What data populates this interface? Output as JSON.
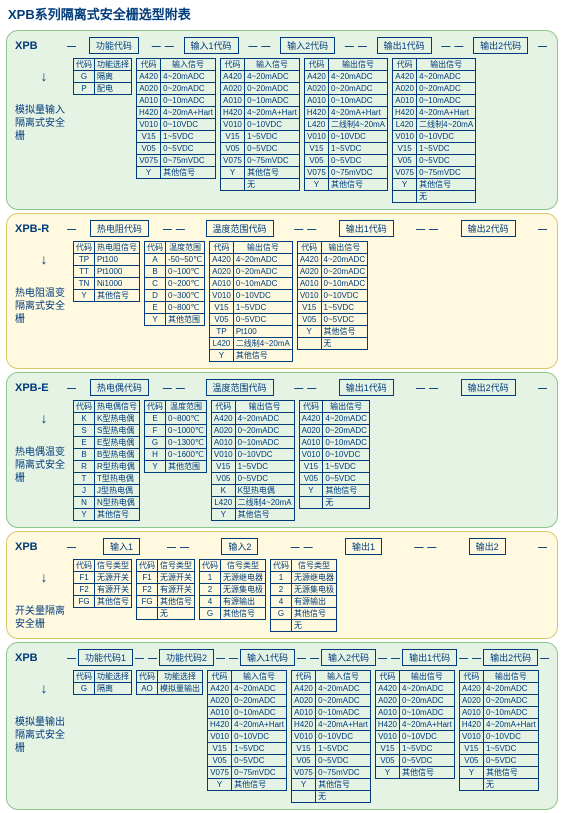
{
  "title": "XPB系列隔离式安全栅选型附表",
  "colors": {
    "text": "#003b7a",
    "green_bg": "#e5f3e5",
    "green_border": "#8bc78b",
    "yellow_bg": "#fef9df",
    "yellow_border": "#d8c96b"
  },
  "sections": [
    {
      "color": "green",
      "prefix": "XPB",
      "left_label": "模拟量输入隔离式安全栅",
      "headers": [
        "功能代码",
        "输入1代码",
        "输入2代码",
        "输出1代码",
        "输出2代码"
      ],
      "header_spacers": [
        14,
        10,
        10,
        10,
        10
      ],
      "tables": [
        {
          "cols": [
            "代码",
            "功能选择"
          ],
          "rows": [
            [
              "G",
              "隔离"
            ],
            [
              "P",
              "配电"
            ]
          ]
        },
        {
          "cols": [
            "代码",
            "输入信号"
          ],
          "rows": [
            [
              "A420",
              "4~20mADC"
            ],
            [
              "A020",
              "0~20mADC"
            ],
            [
              "A010",
              "0~10mADC"
            ],
            [
              "H420",
              "4~20mA+Hart"
            ],
            [
              "V010",
              "0~10VDC"
            ],
            [
              "V15",
              "1~5VDC"
            ],
            [
              "V05",
              "0~5VDC"
            ],
            [
              "V075",
              "0~75mVDC"
            ],
            [
              "Y",
              "其他信号"
            ]
          ]
        },
        {
          "cols": [
            "代码",
            "输入信号"
          ],
          "rows": [
            [
              "A420",
              "4~20mADC"
            ],
            [
              "A020",
              "0~20mADC"
            ],
            [
              "A010",
              "0~10mADC"
            ],
            [
              "H420",
              "4~20mA+Hart"
            ],
            [
              "V010",
              "0~10VDC"
            ],
            [
              "V15",
              "1~5VDC"
            ],
            [
              "V05",
              "0~5VDC"
            ],
            [
              "V075",
              "0~75mVDC"
            ],
            [
              "Y",
              "其他信号"
            ],
            [
              "",
              "无"
            ]
          ]
        },
        {
          "cols": [
            "代码",
            "输出信号"
          ],
          "rows": [
            [
              "A420",
              "4~20mADC"
            ],
            [
              "A020",
              "0~20mADC"
            ],
            [
              "A010",
              "0~10mADC"
            ],
            [
              "H420",
              "4~20mA+Hart"
            ],
            [
              "L420",
              "二线制4~20mA"
            ],
            [
              "V010",
              "0~10VDC"
            ],
            [
              "V15",
              "1~5VDC"
            ],
            [
              "V05",
              "0~5VDC"
            ],
            [
              "V075",
              "0~75mVDC"
            ],
            [
              "Y",
              "其他信号"
            ]
          ]
        },
        {
          "cols": [
            "代码",
            "输出信号"
          ],
          "rows": [
            [
              "A420",
              "4~20mADC"
            ],
            [
              "A020",
              "0~20mADC"
            ],
            [
              "A010",
              "0~10mADC"
            ],
            [
              "H420",
              "4~20mA+Hart"
            ],
            [
              "L420",
              "二线制4~20mA"
            ],
            [
              "V010",
              "0~10VDC"
            ],
            [
              "V15",
              "1~5VDC"
            ],
            [
              "V05",
              "0~5VDC"
            ],
            [
              "V075",
              "0~75mVDC"
            ],
            [
              "Y",
              "其他信号"
            ],
            [
              "",
              "无"
            ]
          ]
        }
      ]
    },
    {
      "color": "yellow",
      "prefix": "XPB-R",
      "left_label": "热电阻温变隔离式安全栅",
      "headers": [
        "热电阻代码",
        "温度范围代码",
        "输出1代码",
        "输出2代码"
      ],
      "header_spacers": [
        14,
        22,
        24,
        24
      ],
      "tables": [
        {
          "cols": [
            "代码",
            "热电阻信号"
          ],
          "rows": [
            [
              "TP",
              "Pt100"
            ],
            [
              "TT",
              "Pt1000"
            ],
            [
              "TN",
              "Ni1000"
            ],
            [
              "Y",
              "其他信号"
            ]
          ]
        },
        {
          "cols": [
            "代码",
            "温度范围"
          ],
          "rows": [
            [
              "A",
              "-50~50℃"
            ],
            [
              "B",
              "0~100℃"
            ],
            [
              "C",
              "0~200℃"
            ],
            [
              "D",
              "0~300℃"
            ],
            [
              "E",
              "0~800℃"
            ],
            [
              "Y",
              "其他范围"
            ]
          ]
        },
        {
          "cols": [
            "代码",
            "输出信号"
          ],
          "rows": [
            [
              "A420",
              "4~20mADC"
            ],
            [
              "A020",
              "0~20mADC"
            ],
            [
              "A010",
              "0~10mADC"
            ],
            [
              "V010",
              "0~10VDC"
            ],
            [
              "V15",
              "1~5VDC"
            ],
            [
              "V05",
              "0~5VDC"
            ],
            [
              "TP",
              "Pt100"
            ],
            [
              "L420",
              "二线制4~20mA"
            ],
            [
              "Y",
              "其他信号"
            ]
          ]
        },
        {
          "cols": [
            "代码",
            "输出信号"
          ],
          "rows": [
            [
              "A420",
              "4~20mADC"
            ],
            [
              "A020",
              "0~20mADC"
            ],
            [
              "A010",
              "0~10mADC"
            ],
            [
              "V010",
              "0~10VDC"
            ],
            [
              "V15",
              "1~5VDC"
            ],
            [
              "V05",
              "0~5VDC"
            ],
            [
              "Y",
              "其他信号"
            ],
            [
              "",
              "无"
            ]
          ]
        }
      ]
    },
    {
      "color": "green",
      "prefix": "XPB-E",
      "left_label": "热电偶温变隔离式安全栅",
      "headers": [
        "热电偶代码",
        "温度范围代码",
        "输出1代码",
        "输出2代码"
      ],
      "header_spacers": [
        14,
        22,
        24,
        24
      ],
      "tables": [
        {
          "cols": [
            "代码",
            "热电偶信号"
          ],
          "rows": [
            [
              "K",
              "K型热电偶"
            ],
            [
              "S",
              "S型热电偶"
            ],
            [
              "E",
              "E型热电偶"
            ],
            [
              "B",
              "B型热电偶"
            ],
            [
              "R",
              "R型热电偶"
            ],
            [
              "T",
              "T型热电偶"
            ],
            [
              "J",
              "J型热电偶"
            ],
            [
              "N",
              "N型热电偶"
            ],
            [
              "Y",
              "其他信号"
            ]
          ]
        },
        {
          "cols": [
            "代码",
            "温度范围"
          ],
          "rows": [
            [
              "E",
              "0~800℃"
            ],
            [
              "F",
              "0~1000℃"
            ],
            [
              "G",
              "0~1300℃"
            ],
            [
              "H",
              "0~1600℃"
            ],
            [
              "Y",
              "其他范围"
            ]
          ]
        },
        {
          "cols": [
            "代码",
            "输出信号"
          ],
          "rows": [
            [
              "A420",
              "4~20mADC"
            ],
            [
              "A020",
              "0~20mADC"
            ],
            [
              "A010",
              "0~10mADC"
            ],
            [
              "V010",
              "0~10VDC"
            ],
            [
              "V15",
              "1~5VDC"
            ],
            [
              "V05",
              "0~5VDC"
            ],
            [
              "K",
              "K型热电偶"
            ],
            [
              "L420",
              "二线制4~20mA"
            ],
            [
              "Y",
              "其他信号"
            ]
          ]
        },
        {
          "cols": [
            "代码",
            "输出信号"
          ],
          "rows": [
            [
              "A420",
              "4~20mADC"
            ],
            [
              "A020",
              "0~20mADC"
            ],
            [
              "A010",
              "0~10mADC"
            ],
            [
              "V010",
              "0~10VDC"
            ],
            [
              "V15",
              "1~5VDC"
            ],
            [
              "V05",
              "0~5VDC"
            ],
            [
              "Y",
              "其他信号"
            ],
            [
              "",
              "无"
            ]
          ]
        }
      ]
    },
    {
      "color": "yellow",
      "prefix": "XPB",
      "left_label": "开关量隔离安全栅",
      "headers": [
        "输入1",
        "输入2",
        "输出1",
        "输出2"
      ],
      "header_spacers": [
        28,
        34,
        34,
        34
      ],
      "tables": [
        {
          "cols": [
            "代码",
            "信号类型"
          ],
          "rows": [
            [
              "F1",
              "无源开关"
            ],
            [
              "F2",
              "有源开关"
            ],
            [
              "FG",
              "其他信号"
            ]
          ]
        },
        {
          "cols": [
            "代码",
            "信号类型"
          ],
          "rows": [
            [
              "F1",
              "无源开关"
            ],
            [
              "F2",
              "有源开关"
            ],
            [
              "FG",
              "其他信号"
            ],
            [
              "",
              "无"
            ]
          ]
        },
        {
          "cols": [
            "代码",
            "信号类型"
          ],
          "rows": [
            [
              "1",
              "无源继电器"
            ],
            [
              "2",
              "无源集电极"
            ],
            [
              "4",
              "有源输出"
            ],
            [
              "G",
              "其他信号"
            ]
          ]
        },
        {
          "cols": [
            "代码",
            "信号类型"
          ],
          "rows": [
            [
              "1",
              "无源继电器"
            ],
            [
              "2",
              "无源集电极"
            ],
            [
              "4",
              "有源输出"
            ],
            [
              "G",
              "其他信号"
            ],
            [
              "",
              "无"
            ]
          ]
        }
      ]
    },
    {
      "color": "green",
      "prefix": "XPB",
      "left_label": "模拟量输出隔离式安全栅",
      "headers": [
        "功能代码1",
        "功能代码2",
        "输入1代码",
        "输入2代码",
        "输出1代码",
        "输出2代码"
      ],
      "header_spacers": [
        6,
        4,
        4,
        4,
        4,
        4
      ],
      "tables": [
        {
          "cols": [
            "代码",
            "功能选择"
          ],
          "rows": [
            [
              "G",
              "隔离"
            ]
          ]
        },
        {
          "cols": [
            "代码",
            "功能选择"
          ],
          "rows": [
            [
              "AO",
              "模拟量输出"
            ]
          ]
        },
        {
          "cols": [
            "代码",
            "输入信号"
          ],
          "rows": [
            [
              "A420",
              "4~20mADC"
            ],
            [
              "A020",
              "0~20mADC"
            ],
            [
              "A010",
              "0~10mADC"
            ],
            [
              "H420",
              "4~20mA+Hart"
            ],
            [
              "V010",
              "0~10VDC"
            ],
            [
              "V15",
              "1~5VDC"
            ],
            [
              "V05",
              "0~5VDC"
            ],
            [
              "V075",
              "0~75mVDC"
            ],
            [
              "Y",
              "其他信号"
            ]
          ]
        },
        {
          "cols": [
            "代码",
            "输入信号"
          ],
          "rows": [
            [
              "A420",
              "4~20mADC"
            ],
            [
              "A020",
              "0~20mADC"
            ],
            [
              "A010",
              "0~10mADC"
            ],
            [
              "H420",
              "4~20mA+Hart"
            ],
            [
              "V010",
              "0~10VDC"
            ],
            [
              "V15",
              "1~5VDC"
            ],
            [
              "V05",
              "0~5VDC"
            ],
            [
              "V075",
              "0~75mVDC"
            ],
            [
              "Y",
              "其他信号"
            ],
            [
              "",
              "无"
            ]
          ]
        },
        {
          "cols": [
            "代码",
            "输出信号"
          ],
          "rows": [
            [
              "A420",
              "4~20mADC"
            ],
            [
              "A020",
              "0~20mADC"
            ],
            [
              "A010",
              "0~10mADC"
            ],
            [
              "H420",
              "4~20mA+Hart"
            ],
            [
              "V010",
              "0~10VDC"
            ],
            [
              "V15",
              "1~5VDC"
            ],
            [
              "V05",
              "0~5VDC"
            ],
            [
              "Y",
              "其他信号"
            ]
          ]
        },
        {
          "cols": [
            "代码",
            "输出信号"
          ],
          "rows": [
            [
              "A420",
              "4~20mADC"
            ],
            [
              "A020",
              "0~20mADC"
            ],
            [
              "A010",
              "0~10mADC"
            ],
            [
              "H420",
              "4~20mA+Hart"
            ],
            [
              "V010",
              "0~10VDC"
            ],
            [
              "V15",
              "1~5VDC"
            ],
            [
              "V05",
              "0~5VDC"
            ],
            [
              "Y",
              "其他信号"
            ],
            [
              "",
              "无"
            ]
          ]
        }
      ]
    }
  ]
}
